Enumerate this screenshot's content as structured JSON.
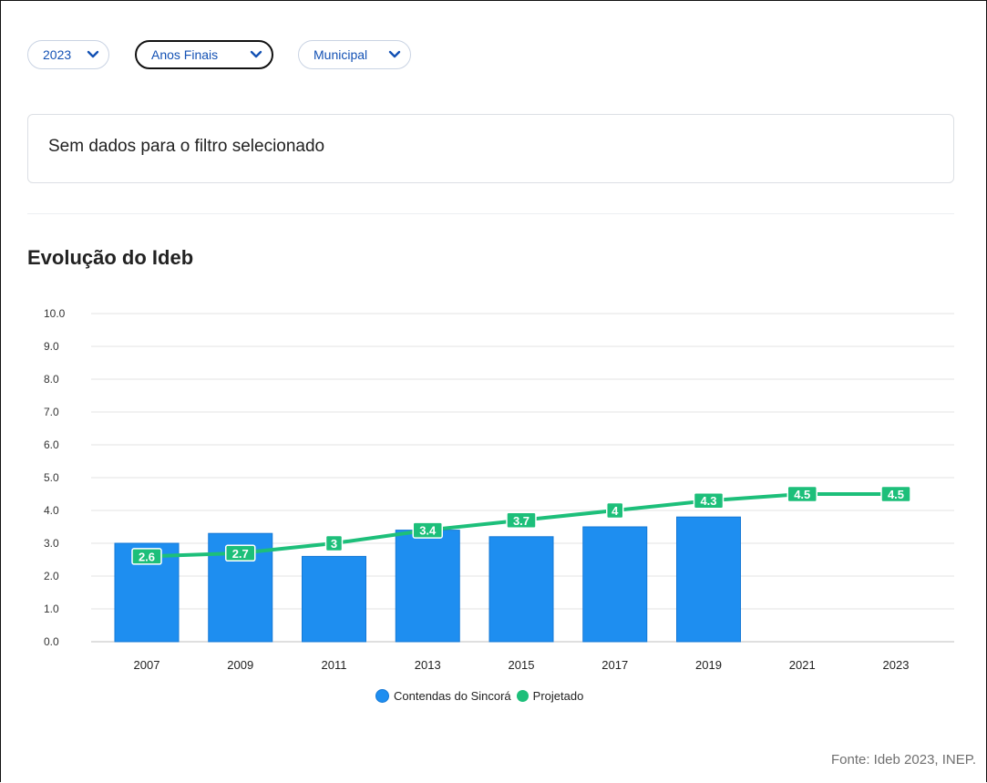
{
  "filters": [
    {
      "label": "2023",
      "active": false
    },
    {
      "label": "Anos Finais",
      "active": true
    },
    {
      "label": "Municipal",
      "active": false
    }
  ],
  "notice": "Sem dados para o filtro selecionado",
  "chart_title": "Evolução do Ideb",
  "source": "Fonte: Ideb 2023, INEP.",
  "colors": {
    "bar": "#1e8ef0",
    "bar_edge": "#1478d6",
    "projected": "#1dbf7a",
    "accent": "#1351b4"
  },
  "chart_data": {
    "type": "bar",
    "title": "Evolução do Ideb",
    "categories": [
      "2007",
      "2009",
      "2011",
      "2013",
      "2015",
      "2017",
      "2019",
      "2021",
      "2023"
    ],
    "ylim": [
      0,
      10
    ],
    "yticks": [
      "0.0",
      "1.0",
      "2.0",
      "3.0",
      "4.0",
      "5.0",
      "6.0",
      "7.0",
      "8.0",
      "9.0",
      "10.0"
    ],
    "grid": true,
    "legend_position": "bottom",
    "series": [
      {
        "name": "Contendas do Sincorá",
        "type": "bar",
        "values": [
          3.0,
          3.3,
          2.6,
          3.4,
          3.2,
          3.5,
          3.8,
          null,
          null
        ]
      },
      {
        "name": "Projetado",
        "type": "line",
        "values": [
          2.6,
          2.7,
          3,
          3.4,
          3.7,
          4,
          4.3,
          4.5,
          4.5
        ],
        "labels": [
          "2.6",
          "2.7",
          "3",
          "3.4",
          "3.7",
          "4",
          "4.3",
          "4.5",
          "4.5"
        ]
      }
    ]
  }
}
